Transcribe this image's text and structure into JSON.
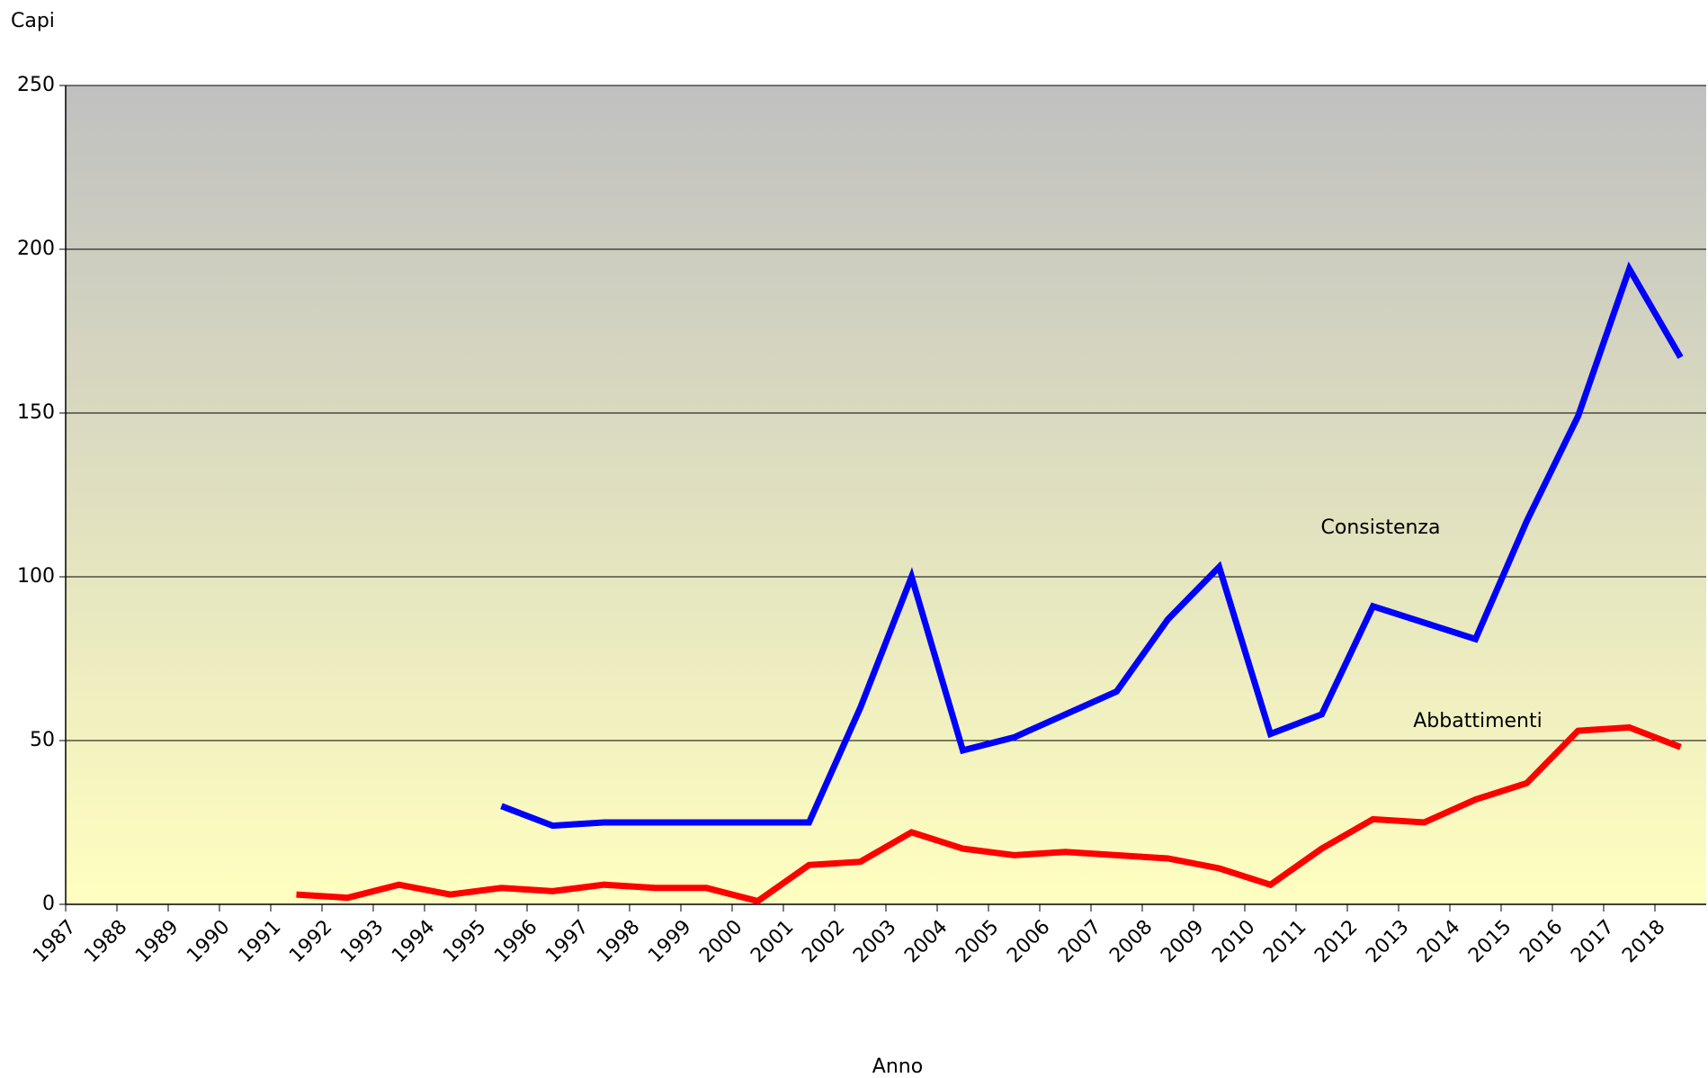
{
  "chart_data": {
    "type": "line",
    "y_label": "Capi",
    "x_label": "Anno",
    "categories": [
      "1987",
      "1988",
      "1989",
      "1990",
      "1991",
      "1992",
      "1993",
      "1994",
      "1995",
      "1996",
      "1997",
      "1998",
      "1999",
      "2000",
      "2001",
      "2002",
      "2003",
      "2004",
      "2005",
      "2006",
      "2007",
      "2008",
      "2009",
      "2010",
      "2011",
      "2012",
      "2013",
      "2014",
      "2015",
      "2016",
      "2017",
      "2018"
    ],
    "series": [
      {
        "name": "Consistenza",
        "color": "#0000ff",
        "values": [
          null,
          null,
          null,
          null,
          null,
          null,
          null,
          null,
          30,
          24,
          25,
          25,
          25,
          25,
          25,
          60,
          100,
          47,
          51,
          58,
          65,
          87,
          103,
          52,
          58,
          91,
          86,
          81,
          117,
          149,
          194,
          167
        ]
      },
      {
        "name": "Abbattimenti",
        "color": "#ff0000",
        "values": [
          null,
          null,
          null,
          null,
          3,
          2,
          6,
          3,
          5,
          4,
          6,
          5,
          5,
          1,
          12,
          13,
          22,
          17,
          15,
          16,
          15,
          14,
          11,
          6,
          17,
          26,
          25,
          32,
          37,
          53,
          54,
          48
        ]
      }
    ],
    "ylim": [
      0,
      250
    ],
    "yticks": [
      0,
      50,
      100,
      150,
      200,
      250
    ],
    "grid": true
  }
}
